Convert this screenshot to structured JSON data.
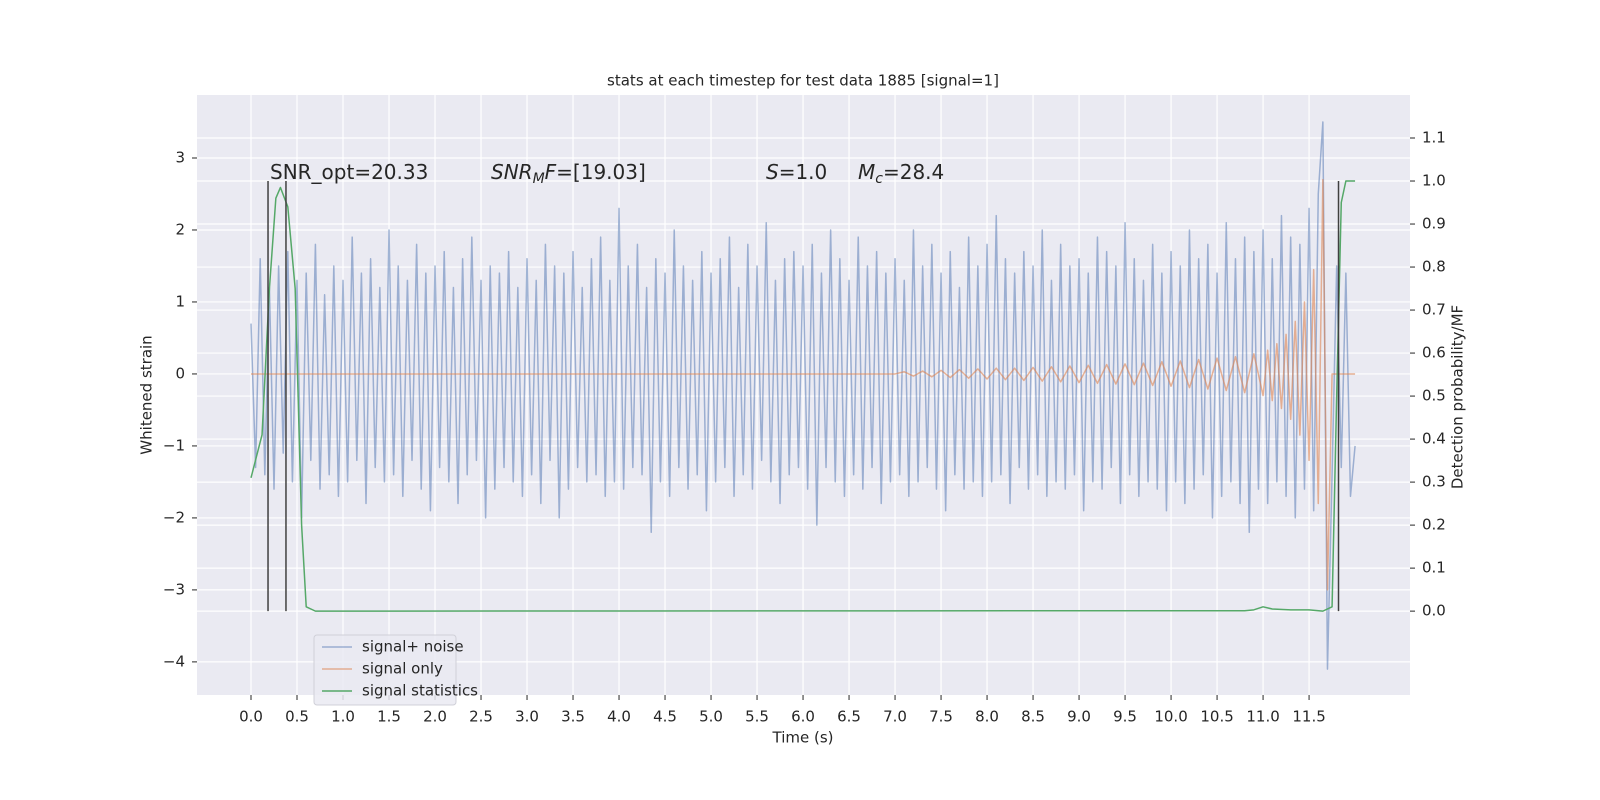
{
  "chart_data": {
    "type": "line",
    "title": "stats at each timestep for test data 1885 [signal=1]",
    "xlabel": "Time (s)",
    "ylabel": "Whitened strain",
    "y2label": "Detection probability/MF",
    "xlim": [
      -0.587,
      12.597
    ],
    "ylim": [
      -4.46,
      3.875
    ],
    "y2lim": [
      -0.195,
      1.2
    ],
    "xticks": [
      {
        "value": 0,
        "label": "0.0"
      },
      0.5,
      {
        "value": 1,
        "label": "1.0"
      },
      1.5,
      {
        "value": 2,
        "label": "2.0"
      },
      2.5,
      {
        "value": 3,
        "label": "3.0"
      },
      3.5,
      {
        "value": 4,
        "label": "4.0"
      },
      4.5,
      {
        "value": 5,
        "label": "5.0"
      },
      5.5,
      {
        "value": 6,
        "label": "6.0"
      },
      6.5,
      {
        "value": 7,
        "label": "7.0"
      },
      7.5,
      {
        "value": 8,
        "label": "8.0"
      },
      8.5,
      {
        "value": 9,
        "label": "9.0"
      },
      9.5,
      {
        "value": 10,
        "label": "10.0"
      },
      10.5,
      {
        "value": 11,
        "label": "11.0"
      },
      11.5
    ],
    "yticks": [
      {
        "value": -4,
        "label": "−4"
      },
      {
        "value": -3,
        "label": "−3"
      },
      {
        "value": -2,
        "label": "−2"
      },
      {
        "value": -1,
        "label": "−1"
      },
      0,
      1,
      2,
      3
    ],
    "y2ticks": [
      {
        "value": 0,
        "label": "0.0"
      },
      0.1,
      0.2,
      0.3,
      0.4,
      0.5,
      0.6,
      0.7,
      0.8,
      0.9,
      {
        "value": 1,
        "label": "1.0"
      },
      1.1
    ],
    "grid": true,
    "legend": "lower left",
    "series": [
      {
        "name": "signal+ noise",
        "color": "#4c72b0",
        "opacity": 0.5,
        "x": [
          0,
          0.05,
          0.1,
          0.15,
          0.2,
          0.25,
          0.3,
          0.35,
          0.4,
          0.45,
          0.5,
          0.55,
          0.6,
          0.65,
          0.7,
          0.75,
          0.8,
          0.85,
          0.9,
          0.95,
          1,
          1.05,
          1.1,
          1.15,
          1.2,
          1.25,
          1.3,
          1.35,
          1.4,
          1.45,
          1.5,
          1.55,
          1.6,
          1.65,
          1.7,
          1.75,
          1.8,
          1.85,
          1.9,
          1.95,
          2,
          2.05,
          2.1,
          2.15,
          2.2,
          2.25,
          2.3,
          2.35,
          2.4,
          2.45,
          2.5,
          2.55,
          2.6,
          2.65,
          2.7,
          2.75,
          2.8,
          2.85,
          2.9,
          2.95,
          3,
          3.05,
          3.1,
          3.15,
          3.2,
          3.25,
          3.3,
          3.35,
          3.4,
          3.45,
          3.5,
          3.55,
          3.6,
          3.65,
          3.7,
          3.75,
          3.8,
          3.85,
          3.9,
          3.95,
          4,
          4.05,
          4.1,
          4.15,
          4.2,
          4.25,
          4.3,
          4.35,
          4.4,
          4.45,
          4.5,
          4.55,
          4.6,
          4.65,
          4.7,
          4.75,
          4.8,
          4.85,
          4.9,
          4.95,
          5,
          5.05,
          5.1,
          5.15,
          5.2,
          5.25,
          5.3,
          5.35,
          5.4,
          5.45,
          5.5,
          5.55,
          5.6,
          5.65,
          5.7,
          5.75,
          5.8,
          5.85,
          5.9,
          5.95,
          6,
          6.05,
          6.1,
          6.15,
          6.2,
          6.25,
          6.3,
          6.35,
          6.4,
          6.45,
          6.5,
          6.55,
          6.6,
          6.65,
          6.7,
          6.75,
          6.8,
          6.85,
          6.9,
          6.95,
          7,
          7.05,
          7.1,
          7.15,
          7.2,
          7.25,
          7.3,
          7.35,
          7.4,
          7.45,
          7.5,
          7.55,
          7.6,
          7.65,
          7.7,
          7.75,
          7.8,
          7.85,
          7.9,
          7.95,
          8,
          8.05,
          8.1,
          8.15,
          8.2,
          8.25,
          8.3,
          8.35,
          8.4,
          8.45,
          8.5,
          8.55,
          8.6,
          8.65,
          8.7,
          8.75,
          8.8,
          8.85,
          8.9,
          8.95,
          9,
          9.05,
          9.1,
          9.15,
          9.2,
          9.25,
          9.3,
          9.35,
          9.4,
          9.45,
          9.5,
          9.55,
          9.6,
          9.65,
          9.7,
          9.75,
          9.8,
          9.85,
          9.9,
          9.95,
          10,
          10.05,
          10.1,
          10.15,
          10.2,
          10.25,
          10.3,
          10.35,
          10.4,
          10.45,
          10.5,
          10.55,
          10.6,
          10.65,
          10.7,
          10.75,
          10.8,
          10.85,
          10.9,
          10.95,
          11,
          11.05,
          11.1,
          11.15,
          11.2,
          11.25,
          11.3,
          11.35,
          11.4,
          11.45,
          11.5,
          11.55,
          11.6,
          11.65,
          11.7,
          11.75,
          11.8,
          11.85,
          11.9,
          11.95,
          12
        ],
        "values": [
          0.7,
          -1.3,
          1.6,
          -1.4,
          1.2,
          -1.6,
          1.5,
          -1.1,
          1.7,
          -1.5,
          1.3,
          -2.0,
          1.4,
          -1.2,
          1.8,
          -1.6,
          1.1,
          -1.4,
          1.5,
          -1.7,
          1.3,
          -1.5,
          1.9,
          -1.2,
          1.4,
          -1.8,
          1.6,
          -1.3,
          1.2,
          -1.5,
          2.0,
          -1.4,
          1.5,
          -1.7,
          1.3,
          -1.2,
          1.8,
          -1.6,
          1.4,
          -1.9,
          1.5,
          -1.3,
          1.7,
          -1.5,
          1.2,
          -1.8,
          1.6,
          -1.4,
          1.9,
          -1.2,
          1.3,
          -2.0,
          1.5,
          -1.6,
          1.4,
          -1.3,
          1.7,
          -1.5,
          1.2,
          -1.7,
          1.6,
          -1.4,
          1.3,
          -1.8,
          1.8,
          -1.2,
          1.5,
          -2.0,
          1.4,
          -1.6,
          1.7,
          -1.3,
          1.2,
          -1.5,
          1.6,
          -1.4,
          1.9,
          -1.7,
          1.3,
          -1.5,
          2.3,
          -1.6,
          1.5,
          -1.3,
          1.8,
          -1.4,
          1.2,
          -2.2,
          1.6,
          -1.5,
          1.4,
          -1.7,
          2.0,
          -1.3,
          1.5,
          -1.6,
          1.3,
          -1.4,
          1.7,
          -1.9,
          1.4,
          -1.5,
          1.6,
          -1.3,
          1.9,
          -1.7,
          1.2,
          -1.4,
          1.8,
          -1.6,
          1.5,
          -1.2,
          2.1,
          -1.5,
          1.3,
          -1.8,
          1.6,
          -1.4,
          1.7,
          -1.3,
          1.5,
          -1.6,
          1.8,
          -2.1,
          1.4,
          -1.3,
          2.0,
          -1.5,
          1.6,
          -1.7,
          1.3,
          -1.4,
          1.9,
          -1.6,
          1.5,
          -1.3,
          1.7,
          -1.8,
          1.4,
          -1.5,
          1.6,
          -1.4,
          1.3,
          -1.7,
          2.0,
          -1.5,
          1.5,
          -1.3,
          1.8,
          -1.6,
          1.4,
          -1.9,
          1.7,
          -1.4,
          1.2,
          -1.6,
          1.9,
          -1.5,
          1.5,
          -1.7,
          1.8,
          -1.5,
          2.2,
          -1.4,
          1.6,
          -1.8,
          1.4,
          -1.3,
          1.7,
          -1.6,
          1.5,
          -1.4,
          2.0,
          -1.7,
          1.3,
          -1.5,
          1.8,
          -1.6,
          1.5,
          -1.4,
          1.6,
          -1.9,
          1.4,
          -1.5,
          1.9,
          -1.6,
          1.7,
          -1.3,
          1.5,
          -1.8,
          2.1,
          -1.4,
          1.6,
          -1.7,
          1.3,
          -1.5,
          1.8,
          -1.6,
          1.4,
          -1.9,
          1.7,
          -1.5,
          1.5,
          -1.8,
          2.0,
          -1.6,
          1.6,
          -1.4,
          1.8,
          -2.0,
          1.4,
          -1.7,
          2.1,
          -1.5,
          1.6,
          -1.8,
          1.9,
          -2.2,
          1.7,
          -1.6,
          2.0,
          -1.8,
          1.6,
          -1.5,
          2.2,
          -1.7,
          1.9,
          -2.0,
          1.8,
          -1.6,
          2.3,
          -1.9,
          2.5,
          3.5,
          -4.1,
          -1.4,
          1.5,
          -1.3,
          1.4,
          -1.7,
          -1.0
        ]
      },
      {
        "name": "signal only",
        "color": "#dd8452",
        "opacity": 0.6,
        "x": [
          0,
          7.0,
          7.1,
          7.2,
          7.3,
          7.4,
          7.5,
          7.6,
          7.7,
          7.8,
          7.9,
          8.0,
          8.1,
          8.2,
          8.3,
          8.4,
          8.5,
          8.6,
          8.7,
          8.8,
          8.9,
          9.0,
          9.1,
          9.2,
          9.3,
          9.4,
          9.5,
          9.6,
          9.7,
          9.8,
          9.9,
          10.0,
          10.1,
          10.2,
          10.3,
          10.4,
          10.5,
          10.6,
          10.7,
          10.8,
          10.9,
          11.0,
          11.05,
          11.1,
          11.15,
          11.2,
          11.25,
          11.3,
          11.35,
          11.4,
          11.45,
          11.5,
          11.55,
          11.6,
          11.65,
          11.7,
          11.75,
          12.0
        ],
        "values": [
          0,
          0,
          0.03,
          -0.03,
          0.04,
          -0.04,
          0.05,
          -0.05,
          0.06,
          -0.06,
          0.07,
          -0.07,
          0.08,
          -0.08,
          0.08,
          -0.09,
          0.09,
          -0.1,
          0.1,
          -0.11,
          0.11,
          -0.12,
          0.12,
          -0.13,
          0.13,
          -0.14,
          0.14,
          -0.15,
          0.15,
          -0.16,
          0.17,
          -0.17,
          0.18,
          -0.19,
          0.2,
          -0.21,
          0.22,
          -0.23,
          0.24,
          -0.26,
          0.28,
          -0.3,
          0.33,
          -0.37,
          0.42,
          -0.48,
          0.55,
          -0.63,
          0.73,
          -0.85,
          1.0,
          -1.2,
          1.45,
          -1.8,
          2.7,
          -3.0,
          0,
          0
        ]
      },
      {
        "name": "signal statistics",
        "color": "#55a868",
        "opacity": 1,
        "axis": "y2",
        "x": [
          0,
          0.12,
          0.2,
          0.27,
          0.32,
          0.4,
          0.48,
          0.55,
          0.6,
          0.7,
          10.8,
          10.9,
          11.0,
          11.1,
          11.3,
          11.5,
          11.65,
          11.75,
          11.8,
          11.85,
          11.9,
          12.0
        ],
        "values": [
          0.31,
          0.41,
          0.75,
          0.96,
          0.985,
          0.94,
          0.75,
          0.2,
          0.01,
          0,
          0.001,
          0.003,
          0.01,
          0.005,
          0.003,
          0.003,
          0,
          0.01,
          0.5,
          0.95,
          1.0,
          1.0
        ]
      }
    ],
    "vlines": [
      0.185,
      0.38,
      11.82
    ],
    "vline_range": [
      0,
      1
    ],
    "vline_color": "#404040",
    "annotations": [
      [
        {
          "text": "SNR_opt=20.33"
        }
      ],
      [
        {
          "text": "SNR",
          "italic": true
        },
        {
          "text": "M",
          "italic": true,
          "sub": true
        },
        {
          "text": "F",
          "italic": true
        },
        {
          "text": "=[19.03]"
        }
      ],
      [
        {
          "text": "S",
          "italic": true
        },
        {
          "text": "=1.0"
        }
      ],
      [
        {
          "text": "M",
          "italic": true
        },
        {
          "text": "c",
          "italic": true,
          "sub": true
        },
        {
          "text": "=28.4"
        }
      ]
    ]
  }
}
